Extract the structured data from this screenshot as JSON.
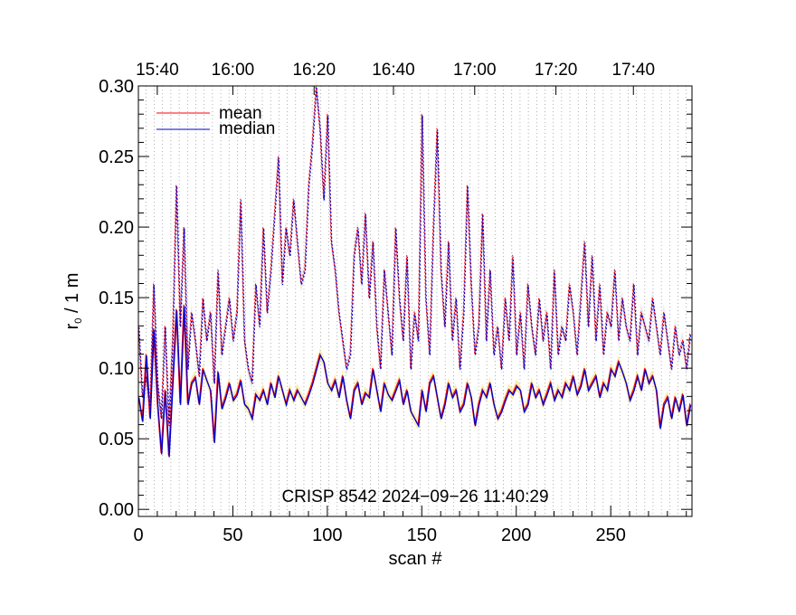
{
  "chart_data": {
    "type": "line",
    "x_top_labels": [
      "15:40",
      "16:00",
      "16:20",
      "16:40",
      "17:00",
      "17:20",
      "17:40"
    ],
    "x_top_positions": [
      10,
      50,
      93,
      135,
      178,
      221,
      262
    ],
    "x_ticks": [
      0,
      50,
      100,
      150,
      200,
      250
    ],
    "y_ticks": [
      0.0,
      0.05,
      0.1,
      0.15,
      0.2,
      0.25,
      0.3
    ],
    "y_tick_labels": [
      "0.00",
      "0.05",
      "0.10",
      "0.15",
      "0.20",
      "0.25",
      "0.30"
    ],
    "xlabel": "scan #",
    "ylabel_main": "r",
    "ylabel_sub": "0",
    "ylabel_rest": " / 1 m",
    "xlim": [
      0,
      293
    ],
    "ylim": [
      -0.005,
      0.3
    ],
    "annotation": "CRISP 8542 2024−09−26 11:40:29",
    "legend": [
      {
        "label": "mean",
        "color": "#ff0000"
      },
      {
        "label": "median",
        "color": "#0000cc"
      }
    ],
    "colors": {
      "mean": "#ff0000",
      "median": "#0000cc",
      "band_solid": "#f2e27a",
      "band_dotted": "#d8d8dc",
      "grid": "#909090"
    },
    "series": [
      {
        "name": "median",
        "style": "solid",
        "x": [
          0,
          2,
          4,
          6,
          8,
          10,
          12,
          14,
          16,
          18,
          20,
          22,
          24,
          26,
          28,
          30,
          32,
          34,
          36,
          38,
          40,
          42,
          44,
          46,
          48,
          50,
          52,
          54,
          56,
          58,
          60,
          62,
          64,
          66,
          68,
          70,
          72,
          74,
          76,
          78,
          80,
          82,
          84,
          86,
          88,
          90,
          92,
          94,
          96,
          98,
          100,
          102,
          104,
          106,
          108,
          110,
          112,
          114,
          116,
          118,
          120,
          122,
          124,
          126,
          128,
          130,
          132,
          134,
          136,
          138,
          140,
          142,
          144,
          146,
          148,
          150,
          152,
          154,
          156,
          158,
          160,
          162,
          164,
          166,
          168,
          170,
          172,
          174,
          176,
          178,
          180,
          182,
          184,
          186,
          188,
          190,
          192,
          194,
          196,
          198,
          200,
          202,
          204,
          206,
          208,
          210,
          212,
          214,
          216,
          218,
          220,
          222,
          224,
          226,
          228,
          230,
          232,
          234,
          236,
          238,
          240,
          242,
          244,
          246,
          248,
          250,
          252,
          254,
          256,
          258,
          260,
          262,
          264,
          266,
          268,
          270,
          272,
          274,
          276,
          278,
          280,
          282,
          284,
          286,
          288,
          290,
          292
        ],
        "y": [
          0.08,
          0.063,
          0.11,
          0.065,
          0.128,
          0.075,
          0.04,
          0.085,
          0.038,
          0.09,
          0.142,
          0.075,
          0.145,
          0.075,
          0.09,
          0.094,
          0.075,
          0.1,
          0.092,
          0.085,
          0.048,
          0.098,
          0.072,
          0.08,
          0.09,
          0.078,
          0.082,
          0.092,
          0.075,
          0.072,
          0.065,
          0.082,
          0.078,
          0.085,
          0.075,
          0.09,
          0.08,
          0.095,
          0.085,
          0.075,
          0.085,
          0.078,
          0.085,
          0.08,
          0.075,
          0.082,
          0.09,
          0.1,
          0.11,
          0.105,
          0.09,
          0.085,
          0.092,
          0.08,
          0.095,
          0.078,
          0.065,
          0.085,
          0.09,
          0.075,
          0.083,
          0.08,
          0.1,
          0.085,
          0.07,
          0.09,
          0.082,
          0.078,
          0.085,
          0.092,
          0.075,
          0.085,
          0.07,
          0.065,
          0.06,
          0.085,
          0.07,
          0.09,
          0.095,
          0.08,
          0.065,
          0.075,
          0.09,
          0.08,
          0.085,
          0.07,
          0.075,
          0.09,
          0.08,
          0.06,
          0.075,
          0.085,
          0.08,
          0.09,
          0.075,
          0.065,
          0.07,
          0.078,
          0.085,
          0.082,
          0.088,
          0.085,
          0.07,
          0.075,
          0.09,
          0.08,
          0.085,
          0.075,
          0.082,
          0.09,
          0.078,
          0.085,
          0.08,
          0.09,
          0.085,
          0.095,
          0.082,
          0.088,
          0.1,
          0.085,
          0.09,
          0.095,
          0.08,
          0.09,
          0.085,
          0.1,
          0.095,
          0.105,
          0.098,
          0.09,
          0.078,
          0.085,
          0.095,
          0.085,
          0.1,
          0.09,
          0.095,
          0.085,
          0.058,
          0.075,
          0.08,
          0.065,
          0.08,
          0.07,
          0.082,
          0.06,
          0.075
        ]
      },
      {
        "name": "mean",
        "style": "dotted",
        "x": [
          0,
          2,
          4,
          6,
          8,
          10,
          12,
          14,
          16,
          18,
          20,
          22,
          24,
          26,
          28,
          30,
          32,
          34,
          36,
          38,
          40,
          42,
          44,
          46,
          48,
          50,
          52,
          54,
          56,
          58,
          60,
          62,
          64,
          66,
          68,
          70,
          72,
          74,
          76,
          78,
          80,
          82,
          84,
          86,
          88,
          90,
          92,
          94,
          96,
          98,
          100,
          102,
          104,
          106,
          108,
          110,
          112,
          114,
          116,
          118,
          120,
          122,
          124,
          126,
          128,
          130,
          132,
          134,
          136,
          138,
          140,
          142,
          144,
          146,
          148,
          150,
          152,
          154,
          156,
          158,
          160,
          162,
          164,
          166,
          168,
          170,
          172,
          174,
          176,
          178,
          180,
          182,
          184,
          186,
          188,
          190,
          192,
          194,
          196,
          198,
          200,
          202,
          204,
          206,
          208,
          210,
          212,
          214,
          216,
          218,
          220,
          222,
          224,
          226,
          228,
          230,
          232,
          234,
          236,
          238,
          240,
          242,
          244,
          246,
          248,
          250,
          252,
          254,
          256,
          258,
          260,
          262,
          264,
          266,
          268,
          270,
          272,
          274,
          276,
          278,
          280,
          282,
          284,
          286,
          288,
          290,
          292
        ],
        "y": [
          0.13,
          0.08,
          0.095,
          0.07,
          0.16,
          0.09,
          0.065,
          0.13,
          0.06,
          0.12,
          0.23,
          0.13,
          0.2,
          0.1,
          0.14,
          0.12,
          0.095,
          0.15,
          0.12,
          0.14,
          0.09,
          0.17,
          0.11,
          0.13,
          0.15,
          0.12,
          0.14,
          0.22,
          0.12,
          0.1,
          0.09,
          0.16,
          0.13,
          0.2,
          0.14,
          0.17,
          0.21,
          0.25,
          0.16,
          0.2,
          0.18,
          0.22,
          0.19,
          0.16,
          0.17,
          0.23,
          0.26,
          0.3,
          0.27,
          0.22,
          0.28,
          0.19,
          0.17,
          0.14,
          0.12,
          0.1,
          0.11,
          0.18,
          0.2,
          0.16,
          0.21,
          0.15,
          0.19,
          0.13,
          0.1,
          0.17,
          0.14,
          0.11,
          0.2,
          0.15,
          0.12,
          0.18,
          0.1,
          0.14,
          0.12,
          0.28,
          0.15,
          0.11,
          0.2,
          0.27,
          0.17,
          0.13,
          0.19,
          0.12,
          0.15,
          0.1,
          0.14,
          0.23,
          0.16,
          0.11,
          0.13,
          0.21,
          0.12,
          0.17,
          0.11,
          0.13,
          0.1,
          0.15,
          0.12,
          0.18,
          0.11,
          0.14,
          0.1,
          0.16,
          0.13,
          0.11,
          0.15,
          0.12,
          0.14,
          0.1,
          0.17,
          0.11,
          0.13,
          0.12,
          0.16,
          0.14,
          0.11,
          0.15,
          0.19,
          0.13,
          0.18,
          0.12,
          0.16,
          0.11,
          0.14,
          0.13,
          0.17,
          0.12,
          0.15,
          0.13,
          0.12,
          0.16,
          0.11,
          0.14,
          0.13,
          0.12,
          0.15,
          0.13,
          0.11,
          0.14,
          0.12,
          0.1,
          0.13,
          0.11,
          0.12,
          0.1,
          0.125
        ]
      }
    ],
    "grid": true,
    "legend_position": "top-left"
  }
}
